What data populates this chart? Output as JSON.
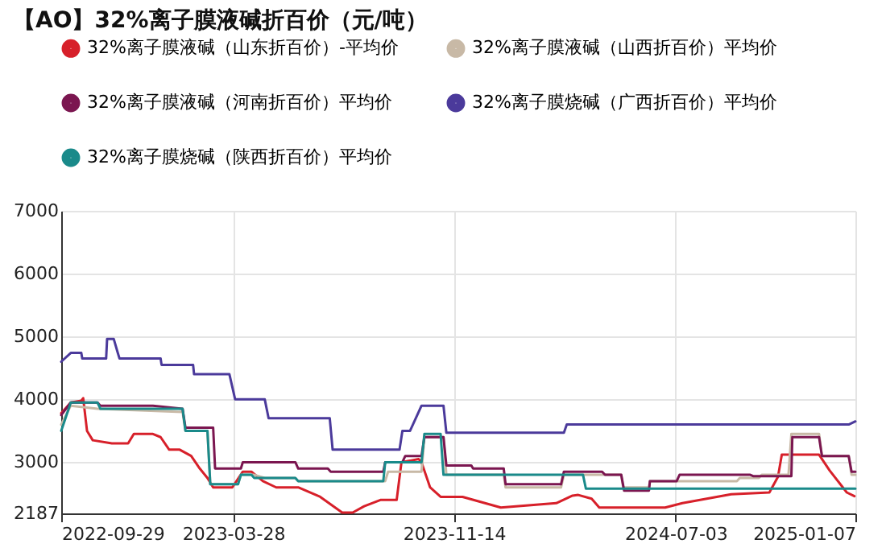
{
  "chart_data": {
    "type": "line",
    "title": "【AO】32%离子膜液碱折百价（元/吨）",
    "xlim": [
      "2022-09-29",
      "2025-01-07"
    ],
    "xticks": [
      "2022-09-29",
      "2023-03-28",
      "2023-11-14",
      "2024-07-03",
      "2025-01-07"
    ],
    "ylim": [
      2187,
      7000
    ],
    "yticks": [
      2187,
      3000,
      4000,
      5000,
      6000,
      7000
    ],
    "grid": true,
    "legend": "top",
    "line_style": "solid",
    "series": [
      {
        "name": "32%离子膜液碱（山东折百价）-平均价",
        "color": "#d7202a",
        "x": [
          "2022-09-29",
          "2022-10-09",
          "2022-10-20",
          "2022-10-22",
          "2022-10-26",
          "2022-11-01",
          "2022-11-21",
          "2022-12-08",
          "2022-12-14",
          "2023-01-03",
          "2023-01-11",
          "2023-01-20",
          "2023-01-31",
          "2023-02-12",
          "2023-02-21",
          "2023-03-01",
          "2023-03-07",
          "2023-03-27",
          "2023-04-07",
          "2023-04-16",
          "2023-04-28",
          "2023-05-12",
          "2023-06-04",
          "2023-06-27",
          "2023-07-20",
          "2023-07-31",
          "2023-08-12",
          "2023-08-29",
          "2023-09-15",
          "2023-09-20",
          "2023-10-08",
          "2023-10-11",
          "2023-10-20",
          "2023-10-31",
          "2023-11-23",
          "2024-01-02",
          "2024-02-29",
          "2024-03-17",
          "2024-03-23",
          "2024-04-06",
          "2024-04-14",
          "2024-06-22",
          "2024-07-10",
          "2024-08-30",
          "2024-10-09",
          "2024-10-18",
          "2024-10-22",
          "2024-11-30",
          "2024-12-11",
          "2024-12-29",
          "2025-01-06"
        ],
        "values": [
          3780,
          3950,
          3980,
          4020,
          3500,
          3350,
          3300,
          3300,
          3450,
          3450,
          3400,
          3200,
          3200,
          3100,
          2900,
          2750,
          2600,
          2600,
          2850,
          2850,
          2700,
          2600,
          2600,
          2450,
          2200,
          2200,
          2300,
          2400,
          2400,
          3000,
          3050,
          3000,
          2600,
          2450,
          2450,
          2280,
          2350,
          2470,
          2480,
          2420,
          2280,
          2280,
          2350,
          2490,
          2520,
          2770,
          3120,
          3120,
          2870,
          2520,
          2460
        ]
      },
      {
        "name": "32%离子膜液碱（山西折百价）平均价",
        "color": "#c8b9a6",
        "x": [
          "2022-09-29",
          "2022-10-09",
          "2022-11-06",
          "2023-02-03",
          "2023-02-06",
          "2023-03-01",
          "2023-03-04",
          "2023-04-02",
          "2023-04-05",
          "2023-04-19",
          "2023-04-30",
          "2023-06-01",
          "2023-06-04",
          "2023-09-03",
          "2023-09-06",
          "2023-10-11",
          "2023-10-14",
          "2023-11-03",
          "2023-11-06",
          "2024-01-05",
          "2024-01-07",
          "2024-03-05",
          "2024-03-08",
          "2024-05-07",
          "2024-05-09",
          "2024-06-05",
          "2024-06-06",
          "2024-09-05",
          "2024-09-08",
          "2024-09-28",
          "2024-10-01",
          "2024-10-29",
          "2024-11-01",
          "2024-11-30",
          "2024-12-03",
          "2024-12-31",
          "2025-01-03",
          "2025-01-07"
        ],
        "values": [
          3600,
          3900,
          3850,
          3800,
          3500,
          3500,
          2650,
          2650,
          2800,
          2800,
          2750,
          2750,
          2700,
          2700,
          2850,
          2850,
          3400,
          3400,
          2800,
          2800,
          2600,
          2600,
          2800,
          2800,
          2600,
          2600,
          2700,
          2700,
          2750,
          2750,
          2800,
          2800,
          3450,
          3450,
          3100,
          3100,
          2800,
          2800
        ]
      },
      {
        "name": "32%离子膜液碱（河南折百价）平均价",
        "color": "#7b1650",
        "x": [
          "2022-09-29",
          "2022-10-09",
          "2022-11-06",
          "2022-11-09",
          "2023-01-03",
          "2023-02-03",
          "2023-02-06",
          "2023-03-07",
          "2023-03-09",
          "2023-04-05",
          "2023-04-07",
          "2023-06-01",
          "2023-06-04",
          "2023-07-05",
          "2023-07-08",
          "2023-09-01",
          "2023-09-03",
          "2023-09-21",
          "2023-09-24",
          "2023-10-11",
          "2023-10-14",
          "2023-11-03",
          "2023-11-06",
          "2023-12-02",
          "2023-12-04",
          "2024-01-05",
          "2024-01-07",
          "2024-03-05",
          "2024-03-08",
          "2024-04-17",
          "2024-04-20",
          "2024-05-07",
          "2024-05-10",
          "2024-06-05",
          "2024-06-06",
          "2024-07-04",
          "2024-07-07",
          "2024-09-19",
          "2024-09-22",
          "2024-11-01",
          "2024-11-02",
          "2024-11-30",
          "2024-12-03",
          "2024-12-31",
          "2025-01-03",
          "2025-01-07"
        ],
        "values": [
          3750,
          3950,
          3950,
          3900,
          3900,
          3850,
          3550,
          3550,
          2900,
          2900,
          3000,
          3000,
          2900,
          2900,
          2850,
          2850,
          3000,
          3000,
          3100,
          3100,
          3400,
          3400,
          2950,
          2950,
          2900,
          2900,
          2650,
          2650,
          2850,
          2850,
          2800,
          2800,
          2550,
          2550,
          2700,
          2700,
          2800,
          2800,
          2780,
          2780,
          3400,
          3400,
          3100,
          3100,
          2850,
          2850
        ]
      },
      {
        "name": "32%离子膜烧碱（广西折百价）平均价",
        "color": "#4b3a9b",
        "x": [
          "2022-09-29",
          "2022-10-09",
          "2022-10-20",
          "2022-10-21",
          "2022-11-15",
          "2022-11-16",
          "2022-11-23",
          "2022-11-27",
          "2022-11-29",
          "2023-01-11",
          "2023-01-12",
          "2023-02-14",
          "2023-02-15",
          "2023-03-24",
          "2023-03-30",
          "2023-04-30",
          "2023-05-04",
          "2023-07-07",
          "2023-07-10",
          "2023-09-18",
          "2023-09-21",
          "2023-09-29",
          "2023-10-11",
          "2023-11-03",
          "2023-11-06",
          "2024-03-08",
          "2024-03-11",
          "2024-12-31",
          "2025-01-07"
        ],
        "values": [
          4600,
          4740,
          4740,
          4650,
          4650,
          4960,
          4960,
          4750,
          4650,
          4650,
          4550,
          4550,
          4400,
          4400,
          4000,
          4000,
          3700,
          3700,
          3200,
          3200,
          3500,
          3500,
          3900,
          3900,
          3470,
          3470,
          3600,
          3600,
          3650
        ]
      },
      {
        "name": "32%离子膜烧碱（陕西折百价）平均价",
        "color": "#1a8a8a",
        "x": [
          "2022-09-29",
          "2022-10-09",
          "2022-11-06",
          "2022-11-09",
          "2023-02-03",
          "2023-02-06",
          "2023-03-01",
          "2023-03-04",
          "2023-04-02",
          "2023-04-05",
          "2023-04-16",
          "2023-04-19",
          "2023-06-01",
          "2023-06-04",
          "2023-09-01",
          "2023-09-03",
          "2023-10-11",
          "2023-10-14",
          "2023-10-31",
          "2023-11-03",
          "2024-03-28",
          "2024-03-31",
          "2025-01-07"
        ],
        "values": [
          3500,
          3950,
          3950,
          3850,
          3850,
          3500,
          3500,
          2650,
          2650,
          2800,
          2800,
          2750,
          2750,
          2700,
          2700,
          3000,
          3000,
          3450,
          3450,
          2800,
          2800,
          2580,
          2580
        ]
      }
    ]
  }
}
